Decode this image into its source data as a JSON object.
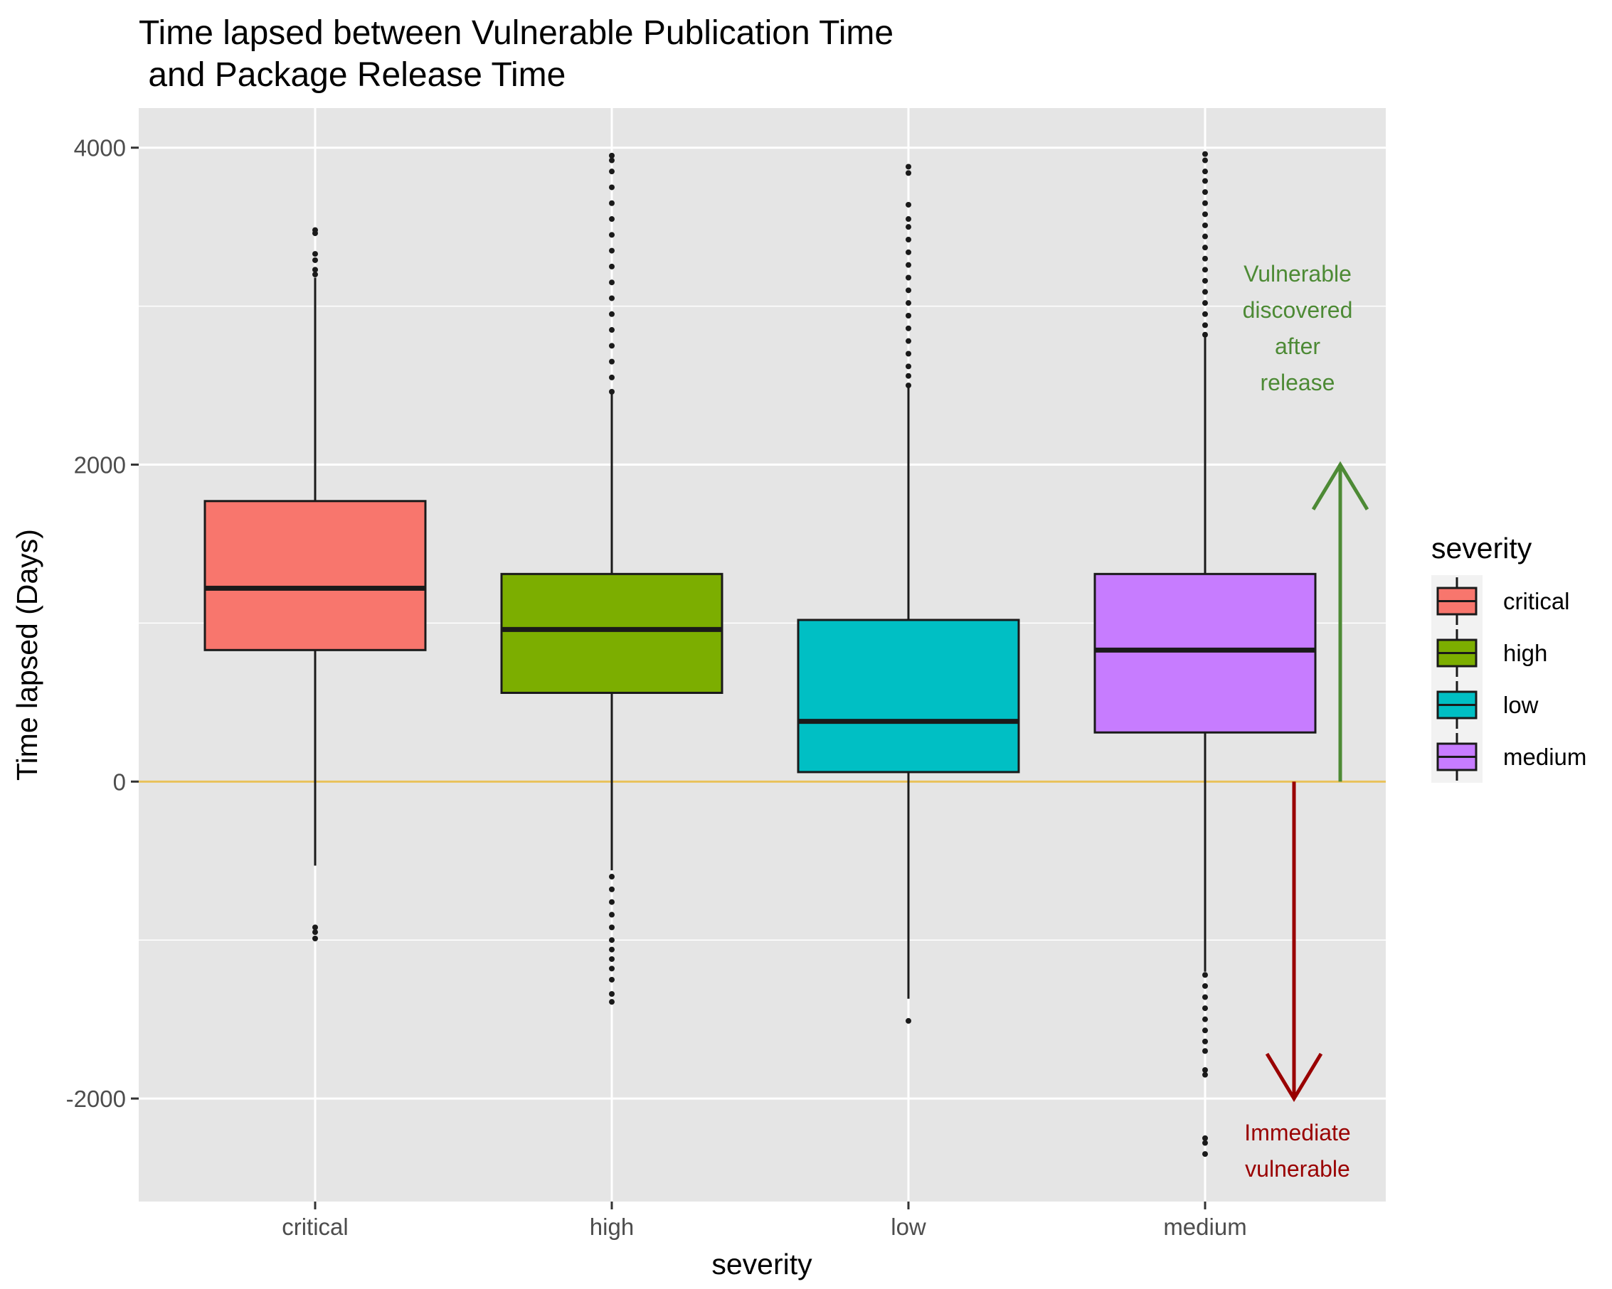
{
  "chart_data": {
    "type": "box",
    "title_line1": "Time lapsed between Vulnerable Publication Time",
    "title_line2": " and Package Release Time",
    "xlabel": "severity",
    "ylabel": "Time lapsed (Days)",
    "ylim": [
      -2650,
      4250
    ],
    "yticks": [
      -2000,
      0,
      2000,
      4000
    ],
    "ytick_labels": [
      "-2000",
      "0",
      "2000",
      "4000"
    ],
    "grid": true,
    "reference_line": {
      "y": 0,
      "color": "#e8c15a"
    },
    "legend": {
      "title": "severity",
      "position": "right"
    },
    "categories": [
      "critical",
      "high",
      "low",
      "medium"
    ],
    "boxes": [
      {
        "category": "critical",
        "color": "#f8766d",
        "q1": 830,
        "median": 1220,
        "q3": 1770,
        "whisker_low": -530,
        "whisker_high": 3180,
        "outliers_high": [
          3200,
          3230,
          3290,
          3330,
          3460,
          3480
        ],
        "outliers_low": [
          -920,
          -950,
          -990
        ]
      },
      {
        "category": "high",
        "color": "#7cae00",
        "q1": 560,
        "median": 960,
        "q3": 1310,
        "whisker_low": -560,
        "whisker_high": 2450,
        "outliers_high": [
          2460,
          2550,
          2650,
          2750,
          2850,
          2950,
          3050,
          3150,
          3250,
          3350,
          3450,
          3550,
          3650,
          3750,
          3850,
          3920,
          3950
        ],
        "outliers_low": [
          -600,
          -680,
          -760,
          -840,
          -920,
          -1000,
          -1060,
          -1120,
          -1180,
          -1250,
          -1340,
          -1390
        ]
      },
      {
        "category": "low",
        "color": "#00bfc4",
        "q1": 60,
        "median": 380,
        "q3": 1020,
        "whisker_low": -1370,
        "whisker_high": 2490,
        "outliers_high": [
          2500,
          2560,
          2620,
          2700,
          2780,
          2860,
          2940,
          3020,
          3100,
          3180,
          3260,
          3340,
          3420,
          3500,
          3550,
          3640,
          3840,
          3880
        ],
        "outliers_low": [
          -1510
        ]
      },
      {
        "category": "medium",
        "color": "#c77cff",
        "q1": 310,
        "median": 830,
        "q3": 1310,
        "whisker_low": -1200,
        "whisker_high": 2810,
        "outliers_high": [
          2820,
          2880,
          2950,
          3020,
          3090,
          3160,
          3230,
          3300,
          3370,
          3440,
          3510,
          3580,
          3650,
          3720,
          3790,
          3850,
          3920,
          3960
        ],
        "outliers_low": [
          -1220,
          -1290,
          -1360,
          -1430,
          -1500,
          -1570,
          -1640,
          -1700,
          -1820,
          -1850,
          -2250,
          -2280,
          -2350
        ]
      }
    ],
    "annotations": [
      {
        "lines": [
          "Vulnerable",
          "discovered",
          "after",
          "release"
        ],
        "color": "#4d8a35"
      },
      {
        "lines": [
          "Immediate",
          "vulnerable"
        ],
        "color": "#990000"
      }
    ],
    "arrows": [
      {
        "from_y": 0,
        "to_y": 2000,
        "color": "#4d8a35"
      },
      {
        "from_y": 0,
        "to_y": -2000,
        "color": "#990000"
      }
    ]
  }
}
